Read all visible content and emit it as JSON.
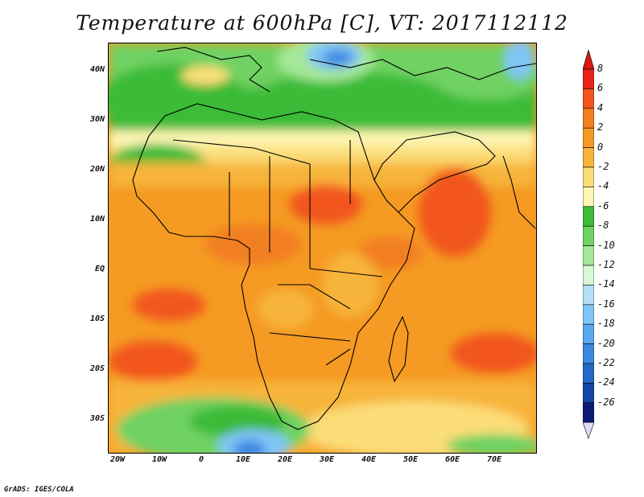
{
  "title": "Temperature at 600hPa [C], VT: 2017112112",
  "credit": "GrADS: IGES/COLA",
  "lat_ticks": [
    "40N",
    "30N",
    "20N",
    "10N",
    "EQ",
    "10S",
    "20S",
    "30S"
  ],
  "lon_ticks": [
    "20W",
    "10W",
    "0",
    "10E",
    "20E",
    "30E",
    "40E",
    "50E",
    "60E",
    "70E"
  ],
  "colorbar": {
    "labels": [
      "8",
      "6",
      "4",
      "2",
      "0",
      "-2",
      "-4",
      "-6",
      "-8",
      "-10",
      "-12",
      "-14",
      "-16",
      "-18",
      "-20",
      "-22",
      "-24",
      "-26"
    ],
    "colors": [
      "#e8231c",
      "#f2561e",
      "#f27f22",
      "#f59a22",
      "#f7b43b",
      "#fbdd78",
      "#fdf5b2",
      "#3bbb39",
      "#6fd262",
      "#a5e897",
      "#d9f7d8",
      "#b4defa",
      "#80c5f7",
      "#5aa8ee",
      "#3d89e0",
      "#2468c8",
      "#1146a8",
      "#0b1c75"
    ],
    "top_color": "#d8170f",
    "bottom_color": "#dfd7f5"
  }
}
